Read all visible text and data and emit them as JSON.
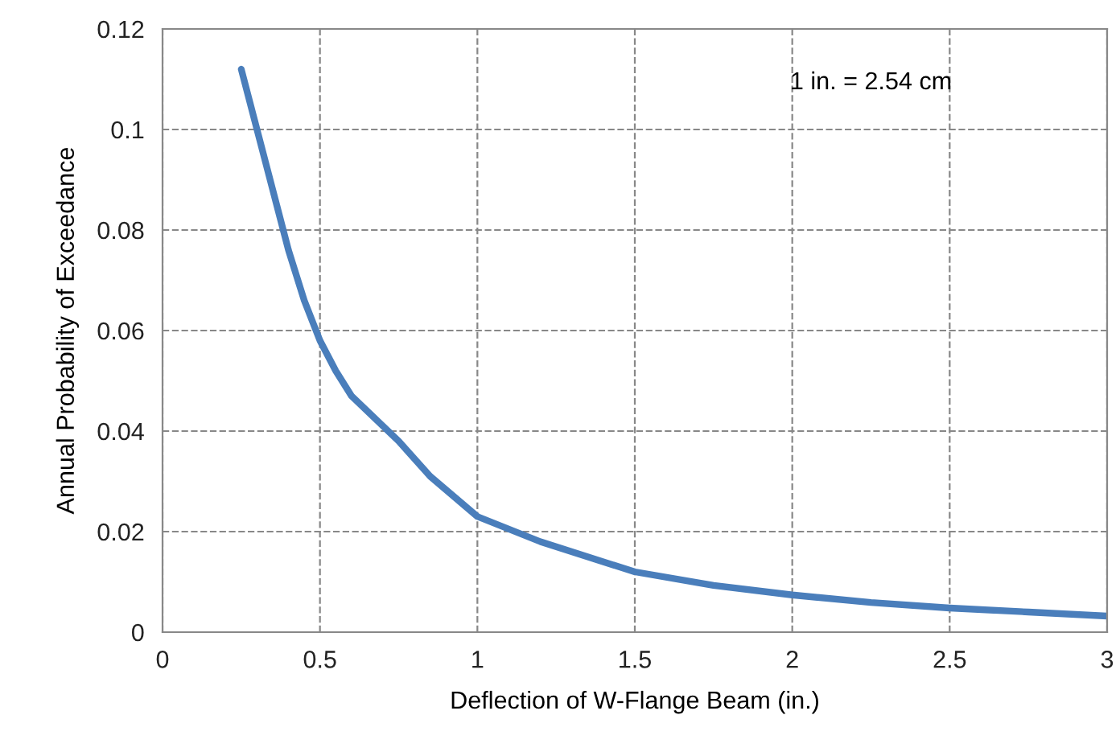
{
  "chart_data": {
    "type": "line",
    "xlabel": "Deflection of W-Flange Beam (in.)",
    "ylabel": "Annual Probability of Exceedance",
    "annotations": [
      "1 in. = 2.54 cm"
    ],
    "series": [
      {
        "color": "#4a7ebb",
        "x": [
          0.25,
          0.3,
          0.35,
          0.4,
          0.45,
          0.5,
          0.55,
          0.6,
          0.7,
          0.75,
          0.85,
          1.0,
          1.2,
          1.5,
          1.75,
          2.0,
          2.25,
          2.5,
          2.75,
          3.0
        ],
        "values": [
          0.112,
          0.1,
          0.088,
          0.076,
          0.066,
          0.058,
          0.052,
          0.047,
          0.041,
          0.038,
          0.031,
          0.023,
          0.018,
          0.012,
          0.0093,
          0.0074,
          0.0059,
          0.0048,
          0.004,
          0.0032
        ]
      }
    ],
    "xlim": [
      0,
      3
    ],
    "ylim": [
      0,
      0.12
    ],
    "xticks": [
      0,
      0.5,
      1,
      1.5,
      2,
      2.5,
      3
    ],
    "yticks": [
      0,
      0.02,
      0.04,
      0.06,
      0.08,
      0.1,
      0.12
    ],
    "grid": true,
    "line_style": "solid",
    "marker": "none"
  }
}
